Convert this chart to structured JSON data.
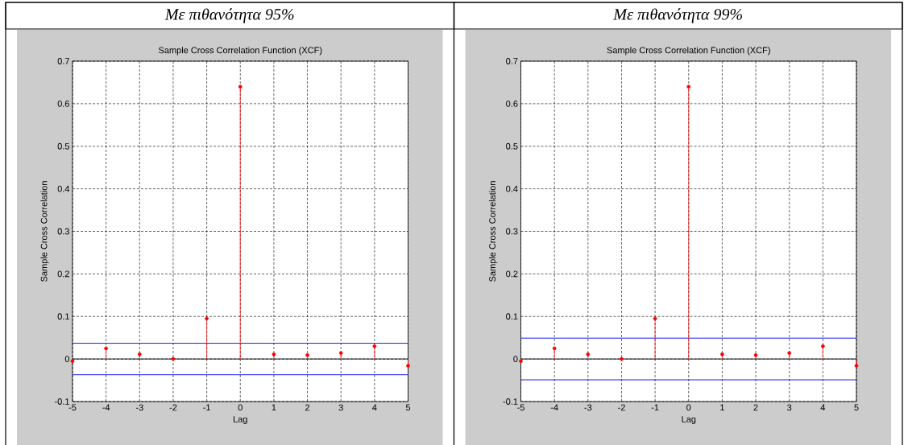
{
  "chart_data": [
    {
      "type": "lollipop",
      "title": "*Με πιθανότητα 95%*",
      "subtitle": "Sample Cross Correlation Function (XCF)",
      "xlabel": "Lag",
      "ylabel": "Sample Cross Correlation",
      "x": [
        -5,
        -4,
        -3,
        -2,
        -1,
        0,
        1,
        2,
        3,
        4,
        5
      ],
      "values": [
        -0.005,
        0.025,
        0.011,
        0.0,
        0.095,
        0.64,
        0.011,
        0.009,
        0.014,
        0.03,
        -0.016
      ],
      "color": "#ff0000",
      "marker": "circle",
      "grid": true,
      "xlim": [
        -5,
        5
      ],
      "ylim": [
        -0.1,
        0.7
      ],
      "xticks": [
        -5,
        -4,
        -3,
        -2,
        -1,
        0,
        1,
        2,
        3,
        4,
        5
      ],
      "yticks": [
        -0.1,
        0,
        0.1,
        0.2,
        0.3,
        0.4,
        0.5,
        0.6,
        0.7
      ],
      "ref_lines": [
        {
          "axis": "y",
          "value": 0,
          "color": "#000000"
        },
        {
          "axis": "y",
          "value": 0.037,
          "color": "#0000ff"
        },
        {
          "axis": "y",
          "value": -0.037,
          "color": "#0000ff"
        }
      ]
    },
    {
      "type": "lollipop",
      "title": "*Με πιθανότητα 99%*",
      "subtitle": "Sample Cross Correlation Function (XCF)",
      "xlabel": "Lag",
      "ylabel": "Sample Cross Correlation",
      "x": [
        -5,
        -4,
        -3,
        -2,
        -1,
        0,
        1,
        2,
        3,
        4,
        5
      ],
      "values": [
        -0.005,
        0.025,
        0.011,
        0.0,
        0.095,
        0.64,
        0.011,
        0.009,
        0.014,
        0.03,
        -0.016
      ],
      "color": "#ff0000",
      "marker": "circle",
      "grid": true,
      "xlim": [
        -5,
        5
      ],
      "ylim": [
        -0.1,
        0.7
      ],
      "xticks": [
        -5,
        -4,
        -3,
        -2,
        -1,
        0,
        1,
        2,
        3,
        4,
        5
      ],
      "yticks": [
        -0.1,
        0,
        0.1,
        0.2,
        0.3,
        0.4,
        0.5,
        0.6,
        0.7
      ],
      "ref_lines": [
        {
          "axis": "y",
          "value": 0,
          "color": "#000000"
        },
        {
          "axis": "y",
          "value": 0.049,
          "color": "#0000ff"
        },
        {
          "axis": "y",
          "value": -0.049,
          "color": "#0000ff"
        }
      ]
    }
  ]
}
